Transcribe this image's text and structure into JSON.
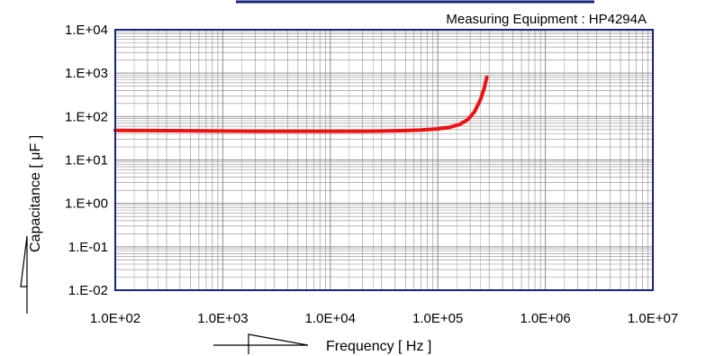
{
  "chart_data": {
    "type": "line",
    "xscale": "log",
    "yscale": "log",
    "xlim": [
      100,
      10000000
    ],
    "ylim": [
      0.01,
      10000
    ],
    "xlabel": "Frequency  [ Hz ]",
    "ylabel": "Capacitance  [ μF ]",
    "annotation": "Measuring Equipment : HP4294A",
    "x_ticks": [
      100,
      1000,
      10000,
      100000,
      1000000,
      10000000
    ],
    "x_tick_labels": [
      "1.0E+02",
      "1.0E+03",
      "1.0E+04",
      "1.0E+05",
      "1.0E+06",
      "1.0E+07"
    ],
    "y_ticks": [
      10000,
      1000,
      100,
      10,
      1,
      0.1,
      0.01
    ],
    "y_tick_labels": [
      "1.E+04",
      "1.E+03",
      "1.E+02",
      "1.E+01",
      "1.E+00",
      "1.E-01",
      "1.E-02"
    ],
    "grid": true,
    "series": [
      {
        "color": "#ee1111",
        "x": [
          100,
          200,
          500,
          1000,
          2000,
          5000,
          10000,
          20000,
          30000,
          50000,
          70000,
          100000,
          130000,
          160000,
          190000,
          220000,
          250000,
          270000,
          285000
        ],
        "y": [
          48,
          47.5,
          47,
          46.5,
          46,
          46,
          46,
          46,
          46.5,
          47.5,
          49,
          52,
          57,
          66,
          85,
          130,
          250,
          450,
          800
        ]
      }
    ],
    "colors": {
      "plot_border": "#1a237e",
      "grid": "#8c8c8c",
      "line": "#ee1111"
    }
  }
}
